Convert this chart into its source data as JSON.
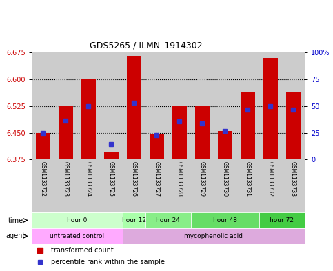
{
  "title": "GDS5265 / ILMN_1914302",
  "samples": [
    "GSM1133722",
    "GSM1133723",
    "GSM1133724",
    "GSM1133725",
    "GSM1133726",
    "GSM1133727",
    "GSM1133728",
    "GSM1133729",
    "GSM1133730",
    "GSM1133731",
    "GSM1133732",
    "GSM1133733"
  ],
  "bar_tops": [
    6.45,
    6.525,
    6.6,
    6.395,
    6.665,
    6.445,
    6.525,
    6.525,
    6.455,
    6.565,
    6.66,
    6.565
  ],
  "bar_bottom": 6.375,
  "percentile_values": [
    6.45,
    6.484,
    6.525,
    6.418,
    6.535,
    6.443,
    6.482,
    6.476,
    6.455,
    6.515,
    6.525,
    6.515
  ],
  "bar_color": "#cc0000",
  "percentile_color": "#3333cc",
  "ylim_left": [
    6.375,
    6.675
  ],
  "ylim_right": [
    0,
    100
  ],
  "yticks_left": [
    6.375,
    6.45,
    6.525,
    6.6,
    6.675
  ],
  "yticks_right": [
    0,
    25,
    50,
    75,
    100
  ],
  "grid_lines": [
    6.45,
    6.525,
    6.6
  ],
  "bar_width": 0.65,
  "col_bg_color": "#cccccc",
  "tick_color_left": "#cc0000",
  "tick_color_right": "#0000cc",
  "time_groups": [
    {
      "label": "hour 0",
      "start": 0,
      "end": 3,
      "color": "#ccffcc"
    },
    {
      "label": "hour 12",
      "start": 4,
      "end": 4,
      "color": "#aaffaa"
    },
    {
      "label": "hour 24",
      "start": 5,
      "end": 6,
      "color": "#88ee88"
    },
    {
      "label": "hour 48",
      "start": 7,
      "end": 9,
      "color": "#66dd66"
    },
    {
      "label": "hour 72",
      "start": 10,
      "end": 11,
      "color": "#44cc44"
    }
  ],
  "agent_groups": [
    {
      "label": "untreated control",
      "start": 0,
      "end": 3,
      "color": "#ffaaff"
    },
    {
      "label": "mycophenolic acid",
      "start": 4,
      "end": 11,
      "color": "#ddaadd"
    }
  ]
}
